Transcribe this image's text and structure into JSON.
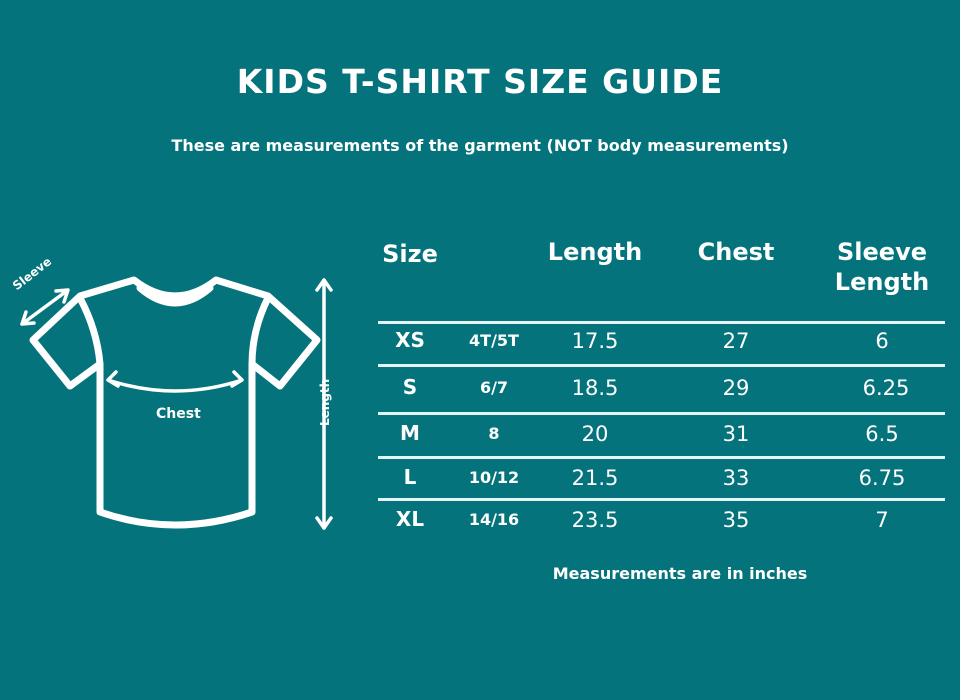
{
  "title": "KIDS T-SHIRT SIZE GUIDE",
  "subtitle": "These are measurements of the garment (NOT body measurements)",
  "diagram": {
    "sleeve_label": "Sleeve",
    "chest_label": "Chest",
    "length_label": "Length"
  },
  "table": {
    "headers": {
      "size": "Size",
      "length": "Length",
      "chest": "Chest",
      "sleeve_1": "Sleeve",
      "sleeve_2": "Length"
    },
    "rows": [
      {
        "size": "XS",
        "age": "4T/5T",
        "length": "17.5",
        "chest": "27",
        "sleeve": "6"
      },
      {
        "size": "S",
        "age": "6/7",
        "length": "18.5",
        "chest": "29",
        "sleeve": "6.25"
      },
      {
        "size": "M",
        "age": "8",
        "length": "20",
        "chest": "31",
        "sleeve": "6.5"
      },
      {
        "size": "L",
        "age": "10/12",
        "length": "21.5",
        "chest": "33",
        "sleeve": "6.75"
      },
      {
        "size": "XL",
        "age": "14/16",
        "length": "23.5",
        "chest": "35",
        "sleeve": "7"
      }
    ]
  },
  "footnote": "Measurements are in inches",
  "colors": {
    "background": "#05737b",
    "foreground": "#ffffff"
  }
}
